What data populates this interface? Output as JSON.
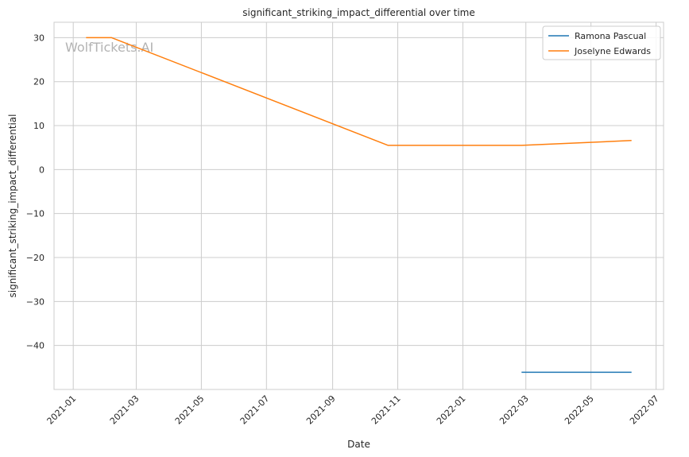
{
  "chart_data": {
    "type": "line",
    "title": "significant_striking_impact_differential over time",
    "xlabel": "Date",
    "ylabel": "significant_striking_impact_differential",
    "watermark": "WolfTickets.AI",
    "x_ticks": [
      "2021-01",
      "2021-03",
      "2021-05",
      "2021-07",
      "2021-09",
      "2021-11",
      "2022-01",
      "2022-03",
      "2022-05",
      "2022-07"
    ],
    "y_ticks": [
      30,
      20,
      10,
      0,
      -10,
      -20,
      -30,
      -40
    ],
    "y_tick_labels": [
      "30",
      "20",
      "10",
      "0",
      "−10",
      "−20",
      "−30",
      "−40"
    ],
    "xlim": [
      "2020-12-14",
      "2022-07-08"
    ],
    "ylim": [
      -50,
      33.5
    ],
    "grid": true,
    "legend_position": "top-right",
    "series": [
      {
        "name": "Ramona Pascual",
        "color": "#1f77b4",
        "points": [
          {
            "x": "2022-02-25",
            "y": -46.1
          },
          {
            "x": "2022-06-08",
            "y": -46.1
          }
        ]
      },
      {
        "name": "Joselyne Edwards",
        "color": "#ff7f0e",
        "points": [
          {
            "x": "2021-01-13",
            "y": 30.0
          },
          {
            "x": "2021-02-06",
            "y": 30.0
          },
          {
            "x": "2021-10-23",
            "y": 5.5
          },
          {
            "x": "2022-02-25",
            "y": 5.5
          },
          {
            "x": "2022-06-08",
            "y": 6.6
          }
        ]
      }
    ]
  }
}
